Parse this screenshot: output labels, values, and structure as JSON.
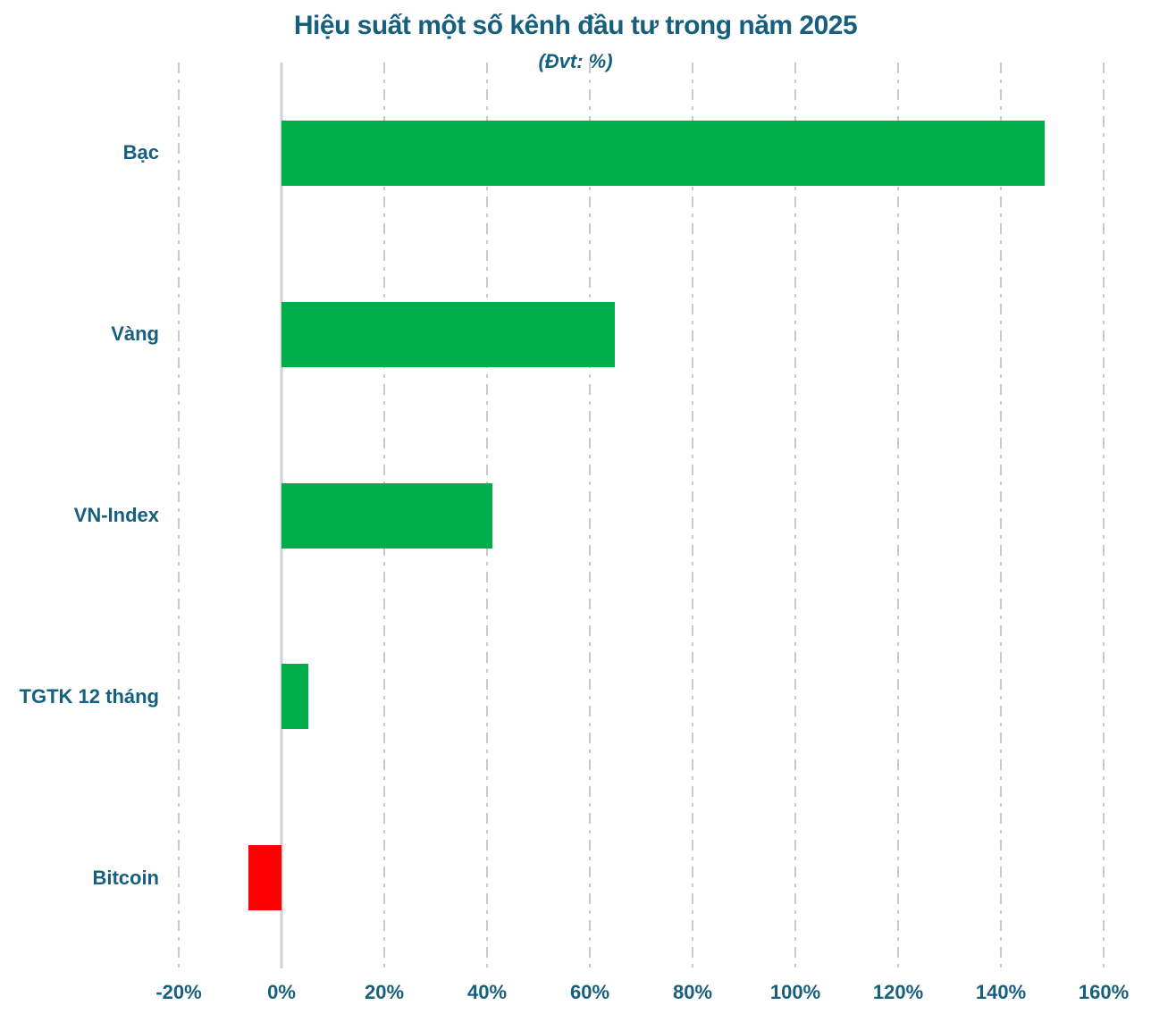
{
  "title": "Hiệu suất một số kênh đầu tư trong năm 2025",
  "subtitle": "(Đvt: %)",
  "chart_data": {
    "type": "bar",
    "orientation": "horizontal",
    "title": "Hiệu suất một số kênh đầu tư trong năm 2025",
    "subtitle": "(Đvt: %)",
    "unit": "%",
    "categories": [
      "Bạc",
      "Vàng",
      "VN-Index",
      "TGTK 12 tháng",
      "Bitcoin"
    ],
    "values": [
      148.6,
      64.8,
      41.0,
      5.2,
      -6.4
    ],
    "xlabel": "",
    "ylabel": "",
    "xlim": [
      -20,
      160
    ],
    "xtick_values": [
      -20,
      0,
      20,
      40,
      60,
      80,
      100,
      120,
      140,
      160
    ],
    "xtick_labels": [
      "-20%",
      "0%",
      "20%",
      "40%",
      "60%",
      "80%",
      "100%",
      "120%",
      "140%",
      "160%"
    ],
    "grid": "vertical dash-dot gridlines, solid zero line, no legend",
    "colors": {
      "positive_bar": "#00ad4b",
      "negative_bar": "#ff0000",
      "text": "#175f7e",
      "gridline": "#c9c9c9",
      "zero_line": "#d2d2d2",
      "background": "#ffffff"
    }
  }
}
